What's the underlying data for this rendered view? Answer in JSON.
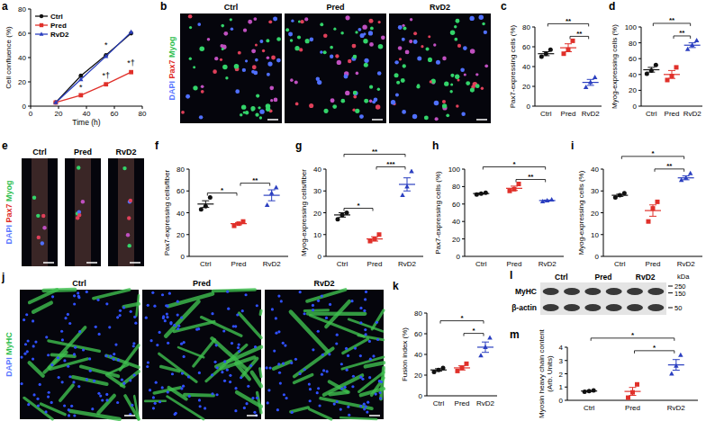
{
  "chart_data": [
    {
      "panel_label": "a",
      "type": "line",
      "x_label": "Time (h)",
      "y_label": "Cell confluence (%)",
      "x": [
        18,
        36,
        54,
        72
      ],
      "series": [
        {
          "name": "Ctrl",
          "color": "#111111",
          "marker": "circle",
          "values": [
            3,
            25,
            42,
            60
          ]
        },
        {
          "name": "Pred",
          "color": "#e0302a",
          "marker": "square",
          "values": [
            3,
            9,
            18,
            28
          ]
        },
        {
          "name": "RvD2",
          "color": "#2b3fc0",
          "marker": "triangle",
          "values": [
            3,
            22,
            41,
            61
          ]
        }
      ],
      "xlim": [
        0,
        80
      ],
      "xticks": [
        0,
        20,
        40,
        60,
        80
      ],
      "ylim": [
        0,
        80
      ],
      "yticks": [
        0,
        20,
        40,
        60,
        80
      ],
      "legend": "upper left",
      "annotations": [
        {
          "x": 36,
          "y": 13,
          "text": "*"
        },
        {
          "x": 54,
          "y": 48,
          "text": "*"
        },
        {
          "x": 54,
          "y": 23,
          "text": "*†"
        },
        {
          "x": 72,
          "y": 33,
          "text": "*†"
        }
      ]
    },
    {
      "panel_label": "c",
      "type": "dot",
      "y_label": "Pax7-expressing cells (%)",
      "categories": [
        "Ctrl",
        "Pred",
        "RvD2"
      ],
      "colors": [
        "#111111",
        "#e0302a",
        "#2b3fc0"
      ],
      "values": [
        53,
        59,
        24
      ],
      "error": [
        2,
        4,
        3
      ],
      "points": [
        [
          50,
          53,
          57
        ],
        [
          53,
          57,
          66
        ],
        [
          19,
          24,
          29
        ]
      ],
      "ylim": [
        0,
        80
      ],
      "yticks": [
        0,
        20,
        40,
        60,
        80
      ],
      "annotations": [
        {
          "pair": [
            1,
            2
          ],
          "text": "**"
        },
        {
          "pair": [
            0,
            2
          ],
          "text": "**"
        }
      ]
    },
    {
      "panel_label": "d",
      "type": "dot",
      "y_label": "Myog-expressing cells (%)",
      "categories": [
        "Ctrl",
        "Pred",
        "RvD2"
      ],
      "colors": [
        "#111111",
        "#e0302a",
        "#2b3fc0"
      ],
      "values": [
        46,
        40,
        77
      ],
      "error": [
        3,
        5,
        3
      ],
      "points": [
        [
          41,
          45,
          52
        ],
        [
          33,
          38,
          49
        ],
        [
          72,
          77,
          83
        ]
      ],
      "ylim": [
        0,
        100
      ],
      "yticks": [
        0,
        20,
        40,
        60,
        80,
        100
      ],
      "annotations": [
        {
          "pair": [
            1,
            2
          ],
          "text": "**"
        },
        {
          "pair": [
            0,
            2
          ],
          "text": "**"
        }
      ]
    },
    {
      "panel_label": "f",
      "type": "dot",
      "y_label": "Pax7-expressing cells/fiber",
      "categories": [
        "Ctrl",
        "Pred",
        "RvD2"
      ],
      "colors": [
        "#111111",
        "#e0302a",
        "#2b3fc0"
      ],
      "values": [
        48,
        30,
        56
      ],
      "error": [
        3,
        1,
        5
      ],
      "points": [
        [
          43,
          46,
          54
        ],
        [
          28,
          30,
          32
        ],
        [
          47,
          58,
          63
        ]
      ],
      "ylim": [
        0,
        80
      ],
      "yticks": [
        0,
        20,
        40,
        60,
        80
      ],
      "annotations": [
        {
          "pair": [
            0,
            1
          ],
          "text": "*"
        },
        {
          "pair": [
            1,
            2
          ],
          "text": "**"
        }
      ]
    },
    {
      "panel_label": "g",
      "type": "dot",
      "y_label": "Myog-expressing cells/fiber",
      "categories": [
        "Ctrl",
        "Pred",
        "RvD2"
      ],
      "colors": [
        "#111111",
        "#e0302a",
        "#2b3fc0"
      ],
      "values": [
        19,
        8,
        33
      ],
      "error": [
        1,
        1,
        3
      ],
      "points": [
        [
          17,
          19,
          20
        ],
        [
          7,
          8,
          10
        ],
        [
          28,
          32,
          39
        ]
      ],
      "ylim": [
        0,
        40
      ],
      "yticks": [
        0,
        10,
        20,
        30,
        40
      ],
      "annotations": [
        {
          "pair": [
            0,
            1
          ],
          "text": "*"
        },
        {
          "pair": [
            1,
            2
          ],
          "text": "***"
        },
        {
          "pair": [
            0,
            2
          ],
          "text": "**"
        }
      ]
    },
    {
      "panel_label": "h",
      "type": "dot",
      "y_label": "Pax7-expressing cells (%)",
      "categories": [
        "Ctrl",
        "Pred",
        "RvD2"
      ],
      "colors": [
        "#111111",
        "#e0302a",
        "#2b3fc0"
      ],
      "values": [
        72,
        78,
        64
      ],
      "error": [
        0.5,
        2.5,
        0.6
      ],
      "points": [
        [
          71,
          72,
          73
        ],
        [
          75,
          77,
          83
        ],
        [
          63,
          64,
          65
        ]
      ],
      "ylim": [
        0,
        100
      ],
      "yticks": [
        0,
        20,
        40,
        60,
        80,
        100
      ],
      "annotations": [
        {
          "pair": [
            1,
            2
          ],
          "text": "**"
        },
        {
          "pair": [
            0,
            2
          ],
          "text": "*"
        }
      ]
    },
    {
      "panel_label": "i",
      "type": "dot",
      "y_label": "Myog-expressing cells (%)",
      "categories": [
        "Ctrl",
        "Pred",
        "RvD2"
      ],
      "colors": [
        "#111111",
        "#e0302a",
        "#2b3fc0"
      ],
      "values": [
        28,
        21,
        36
      ],
      "error": [
        0.5,
        2.6,
        0.9
      ],
      "points": [
        [
          27,
          28,
          29
        ],
        [
          16,
          22,
          25
        ],
        [
          35,
          36,
          38
        ]
      ],
      "ylim": [
        0,
        40
      ],
      "yticks": [
        0,
        10,
        20,
        30,
        40
      ],
      "annotations": [
        {
          "pair": [
            1,
            2
          ],
          "text": "**"
        },
        {
          "pair": [
            0,
            2
          ],
          "text": "*"
        }
      ]
    },
    {
      "panel_label": "k",
      "type": "dot",
      "y_label": "Fusion index (%)",
      "categories": [
        "Ctrl",
        "Pred",
        "RvD2"
      ],
      "colors": [
        "#111111",
        "#e0302a",
        "#2b3fc0"
      ],
      "values": [
        25,
        27,
        47
      ],
      "error": [
        1.2,
        2,
        5
      ],
      "points": [
        [
          23,
          25,
          27
        ],
        [
          24,
          27,
          31
        ],
        [
          39,
          47,
          56
        ]
      ],
      "ylim": [
        0,
        80
      ],
      "yticks": [
        0,
        20,
        40,
        60,
        80
      ],
      "annotations": [
        {
          "pair": [
            1,
            2
          ],
          "text": "*"
        },
        {
          "pair": [
            0,
            2
          ],
          "text": "*"
        }
      ]
    },
    {
      "panel_label": "m",
      "type": "dot",
      "y_label": [
        "Myosin heavy chain content",
        "(Arb. Units)"
      ],
      "categories": [
        "Ctrl",
        "Pred",
        "RvD2"
      ],
      "colors": [
        "#111111",
        "#e0302a",
        "#2b3fc0"
      ],
      "values": [
        0.7,
        0.67,
        2.67
      ],
      "error": [
        0.03,
        0.3,
        0.4
      ],
      "points": [
        [
          0.65,
          0.7,
          0.75
        ],
        [
          0.2,
          0.6,
          1.2
        ],
        [
          2.0,
          2.6,
          3.4
        ]
      ],
      "ylim": [
        0,
        4
      ],
      "yticks": [
        0,
        1,
        2,
        3,
        4
      ],
      "annotations": [
        {
          "pair": [
            1,
            2
          ],
          "text": "*"
        },
        {
          "pair": [
            0,
            2
          ],
          "text": "*"
        }
      ]
    }
  ],
  "images": [
    {
      "panel_label": "b",
      "labels": [
        "Ctrl",
        "Pred",
        "RvD2"
      ],
      "stain": [
        {
          "text": "DAPI",
          "color": "#5a78ff"
        },
        {
          "text": "Pax7",
          "color": "#e0302a"
        },
        {
          "text": "Myog",
          "color": "#2fbf4f"
        }
      ]
    },
    {
      "panel_label": "e",
      "labels": [
        "Ctrl",
        "Pred",
        "RvD2"
      ],
      "stain": [
        {
          "text": "DAPI",
          "color": "#5a78ff"
        },
        {
          "text": "Pax7",
          "color": "#e0302a"
        },
        {
          "text": "Myog",
          "color": "#2fbf4f"
        }
      ]
    },
    {
      "panel_label": "j",
      "labels": [
        "Ctrl",
        "Pred",
        "RvD2"
      ],
      "stain": [
        {
          "text": "DAPI",
          "color": "#5a78ff"
        },
        {
          "text": "MyHC",
          "color": "#2fbf4f"
        }
      ]
    }
  ],
  "blot": {
    "panel_label": "l",
    "lanes": [
      "Ctrl",
      "Pred",
      "RvD2"
    ],
    "bands": [
      "MyHC",
      "β-actin"
    ],
    "unit": "kDa",
    "size_markers": [
      250,
      150,
      50
    ]
  }
}
